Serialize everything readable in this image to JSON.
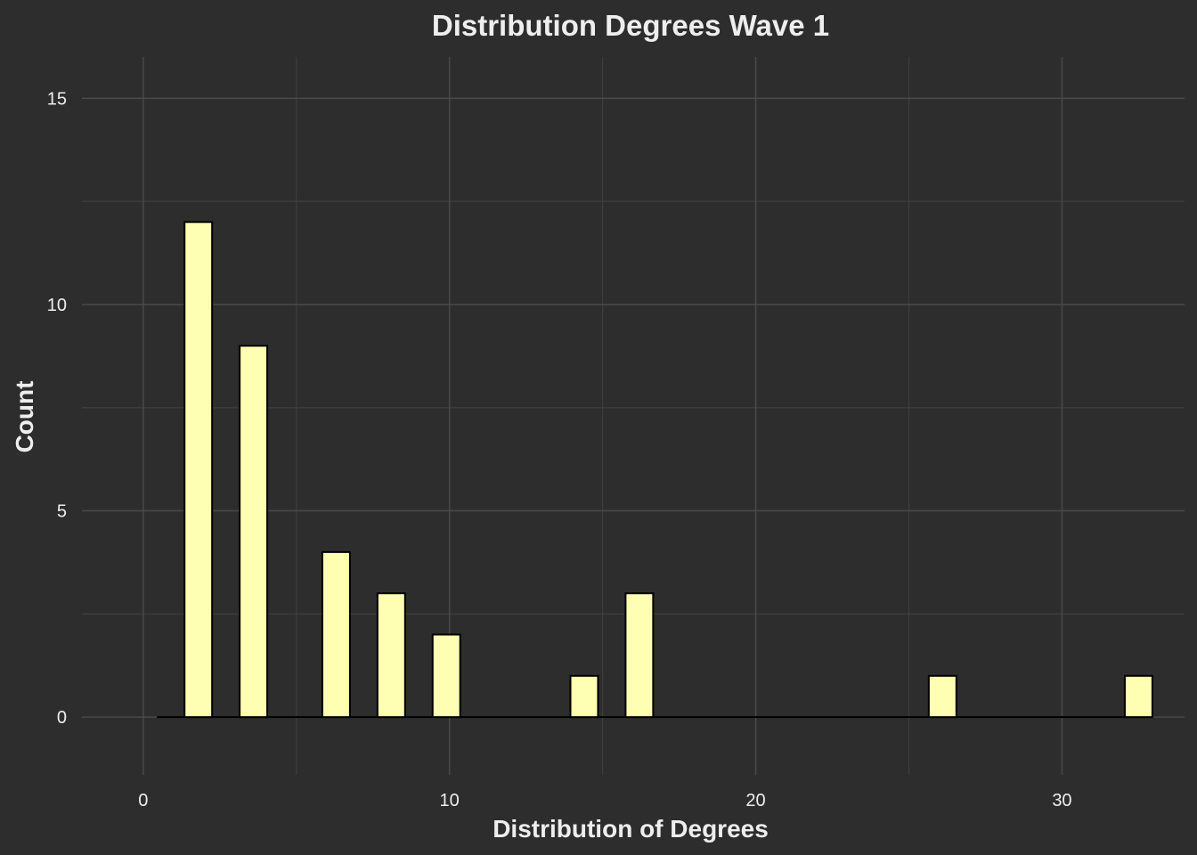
{
  "chart_data": {
    "type": "bar",
    "title": "Distribution Degrees Wave 1",
    "xlabel": "Distribution of Degrees",
    "ylabel": "Count",
    "xlim": [
      -2,
      34
    ],
    "ylim": [
      -1.4,
      16
    ],
    "x_ticks": [
      0,
      10,
      20,
      30
    ],
    "x_tick_labels": [
      "0",
      "10",
      "20",
      "30"
    ],
    "y_ticks": [
      0,
      5,
      10,
      15
    ],
    "y_tick_labels": [
      "0",
      "5",
      "10",
      "15"
    ],
    "grid": true,
    "bin_width": 0.9,
    "bar_fill": "#ffffb3",
    "bar_outline": "#000000",
    "x_range": [
      0.45,
      32.95
    ],
    "bars": [
      {
        "x": 1.8,
        "count": 12
      },
      {
        "x": 3.6,
        "count": 9
      },
      {
        "x": 6.3,
        "count": 4
      },
      {
        "x": 8.1,
        "count": 3
      },
      {
        "x": 9.9,
        "count": 2
      },
      {
        "x": 14.4,
        "count": 1
      },
      {
        "x": 16.2,
        "count": 3
      },
      {
        "x": 26.1,
        "count": 1
      },
      {
        "x": 32.5,
        "count": 1
      }
    ]
  }
}
